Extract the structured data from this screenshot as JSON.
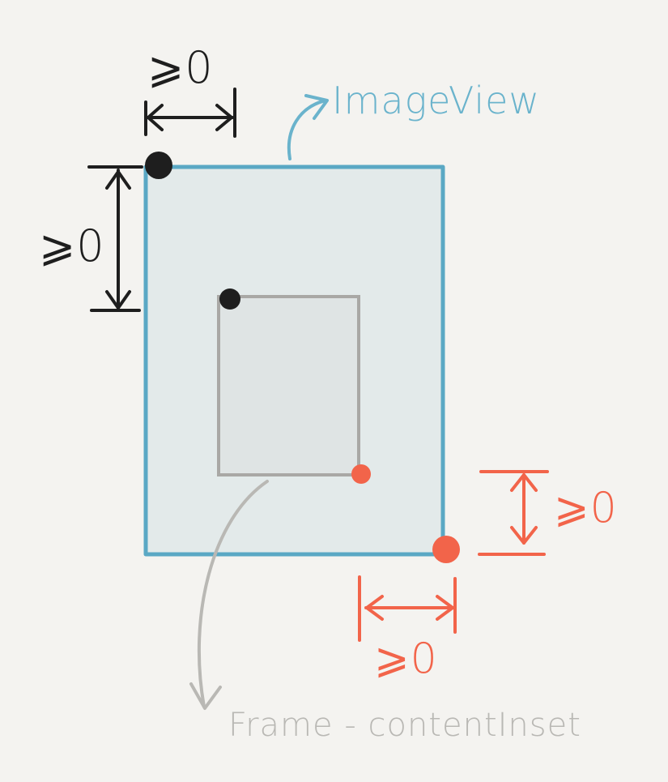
{
  "labels": {
    "imageview": "ImageView",
    "frame_inset": "Frame - contentInset",
    "gte_top_horizontal": "⩾0",
    "gte_top_vertical": "⩾0",
    "gte_bottom_vertical": "⩾0",
    "gte_bottom_horizontal": "⩾0"
  },
  "colors": {
    "background": "#f4f3f0",
    "imageview_stroke": "#5aa8c4",
    "imageview_fill": "#e3eaea",
    "content_stroke": "#a9a8a5",
    "content_fill": "#dfe4e4",
    "top_constraint": "#1e1e1e",
    "bottom_constraint": "#f2644a",
    "imageview_label": "#6ab3cc",
    "frame_label": "#b9b8b4"
  }
}
